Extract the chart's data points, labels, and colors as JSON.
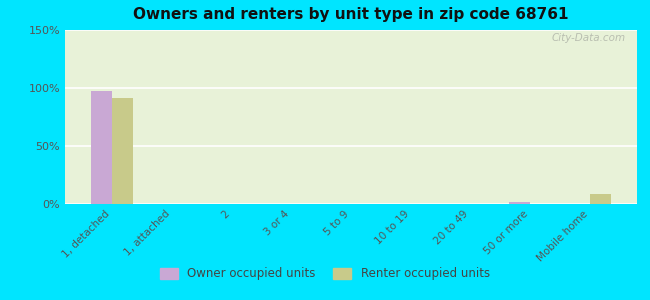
{
  "title": "Owners and renters by unit type in zip code 68761",
  "categories": [
    "1, detached",
    "1, attached",
    "2",
    "3 or 4",
    "5 to 9",
    "10 to 19",
    "20 to 49",
    "50 or more",
    "Mobile home"
  ],
  "owner_values": [
    97,
    0,
    0,
    0,
    0,
    0,
    0,
    2,
    0
  ],
  "renter_values": [
    91,
    0,
    0,
    0,
    0,
    0,
    0,
    0,
    9
  ],
  "owner_color": "#c9a8d4",
  "renter_color": "#c8ca8a",
  "background_outer": "#00e5ff",
  "background_inner": "#e8f2d8",
  "ylim": [
    0,
    150
  ],
  "yticks": [
    0,
    50,
    100,
    150
  ],
  "ytick_labels": [
    "0%",
    "50%",
    "100%",
    "150%"
  ],
  "watermark": "City-Data.com",
  "legend_owner": "Owner occupied units",
  "legend_renter": "Renter occupied units",
  "bar_width": 0.35
}
